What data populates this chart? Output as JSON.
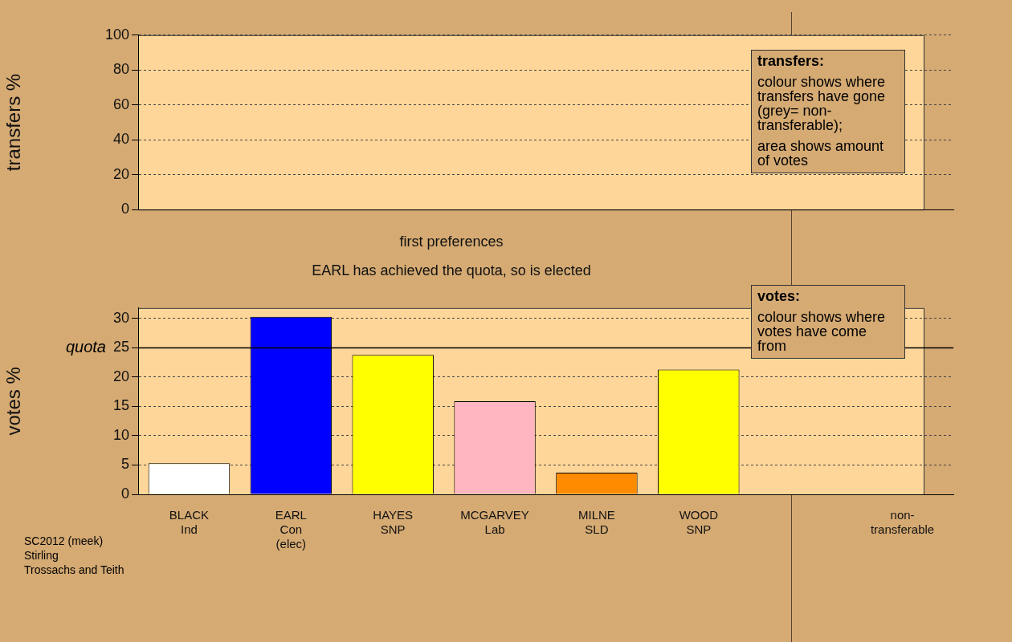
{
  "chart_data": [
    {
      "type": "bar",
      "ylabel": "transfers %",
      "categories": [
        null,
        null,
        null,
        null,
        null,
        null,
        null,
        null
      ],
      "values": [
        null,
        null,
        null,
        null,
        null,
        null,
        null,
        null
      ],
      "ylim": [
        0,
        100
      ],
      "yticks": [
        0,
        20,
        40,
        60,
        80,
        100
      ],
      "grid": "y",
      "tick_labels": "y",
      "legend": false,
      "annotations": [
        "transfers:\ncolour shows where transfers have gone (grey= non-transferable);\narea shows amount of votes"
      ]
    },
    {
      "type": "bar",
      "title": "first preferences",
      "subtitle": "EARL has achieved the quota, so is elected",
      "ylabel": "votes %",
      "categories": [
        "BLACK\nInd",
        "EARL\nCon\n(elec)",
        "HAYES\nSNP",
        "MCGARVEY\nLab",
        "MILNE\nSLD",
        "WOOD\nSNP",
        null,
        "non-\ntransferable"
      ],
      "values": [
        5.3,
        30.3,
        23.8,
        15.9,
        3.7,
        21.3,
        null,
        null
      ],
      "colors": [
        "#ffffff",
        "#0000ff",
        "#ffff00",
        "#ffb6c1",
        "#ff8c00",
        "#ffff00",
        "#ffffff",
        "#ffffff"
      ],
      "ylim": [
        0,
        31.8
      ],
      "yticks": [
        0,
        5,
        10,
        15,
        20,
        25,
        30
      ],
      "grid": "y",
      "legend": false,
      "ref_lines": [
        {
          "axis": "y",
          "value": 25,
          "label": "quota"
        }
      ],
      "annotations": [
        "votes:\ncolour shows where votes have come from",
        "SC2012 (meek)\nStirling\nTrossachs and Teith"
      ]
    }
  ]
}
